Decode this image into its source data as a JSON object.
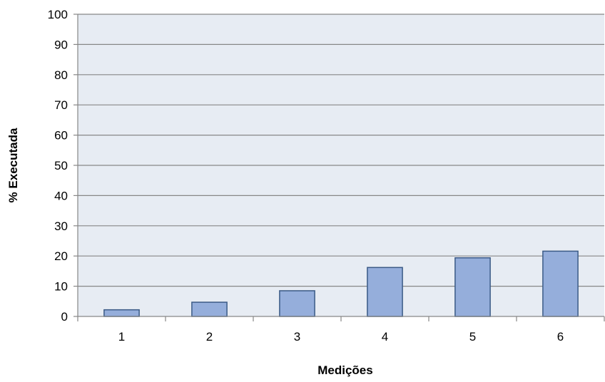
{
  "chart_data": {
    "type": "bar",
    "title": "",
    "xlabel": "Medições",
    "ylabel": "% Executada",
    "categories": [
      "1",
      "2",
      "3",
      "4",
      "5",
      "6"
    ],
    "values": [
      2.2,
      4.7,
      8.5,
      16.2,
      19.4,
      21.6
    ],
    "ylim": [
      0,
      100
    ],
    "yticks": [
      "0",
      "10",
      "20",
      "30",
      "40",
      "50",
      "60",
      "70",
      "80",
      "90",
      "100"
    ],
    "grid": true,
    "legend": "none",
    "colors": {
      "plot_background": "#E7ECF3",
      "bar_fill": "#95AEDB",
      "bar_stroke": "#3B5A86",
      "gridline": "#878787",
      "axis": "#878787"
    }
  }
}
